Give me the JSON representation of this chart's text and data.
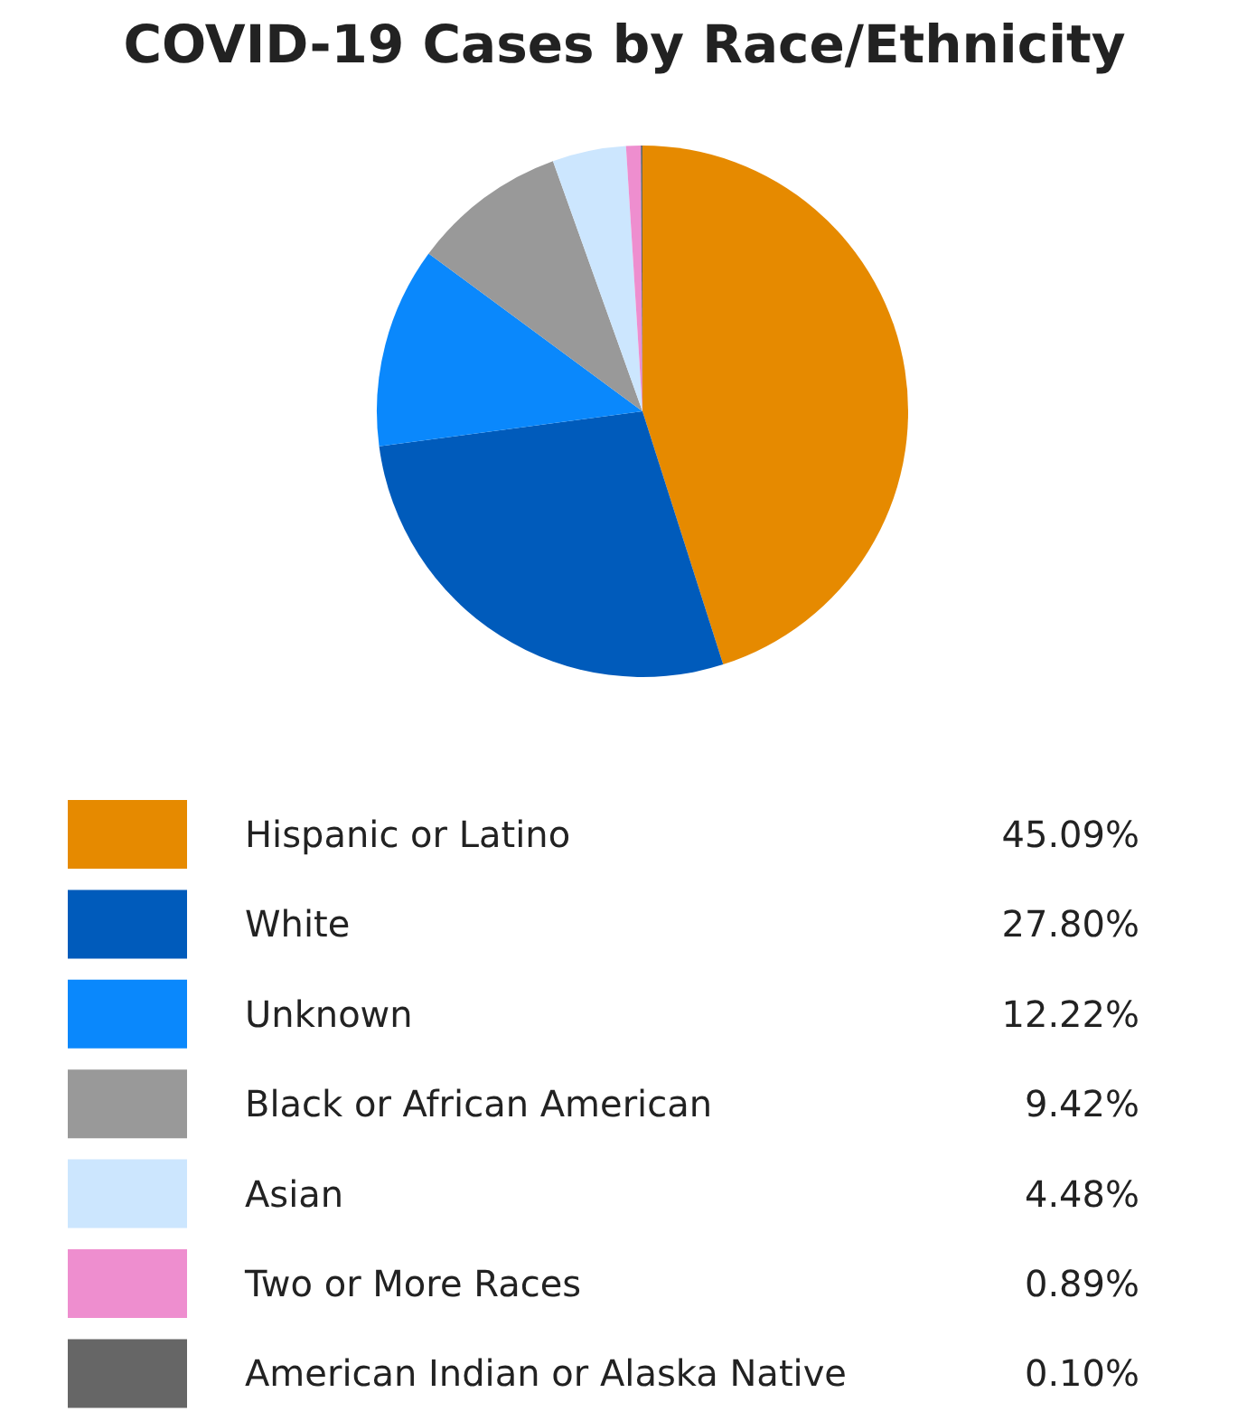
{
  "chart_data": {
    "type": "pie",
    "title": "COVID-19 Cases by Race/Ethnicity",
    "categories": [
      "Hispanic or Latino",
      "White",
      "Unknown",
      "Black or African American",
      "Asian",
      "Two or More Races",
      "American Indian or Alaska Native"
    ],
    "values": [
      45.09,
      27.8,
      12.22,
      9.42,
      4.48,
      0.89,
      0.1
    ],
    "value_labels": [
      "45.09%",
      "27.80%",
      "12.22%",
      "9.42%",
      "4.48%",
      "0.89%",
      "0.10%"
    ],
    "colors": [
      "#e68a00",
      "#005bbb",
      "#0a88fc",
      "#999999",
      "#cce6fe",
      "#ee8ecf",
      "#666666"
    ],
    "legend": "bottom"
  }
}
